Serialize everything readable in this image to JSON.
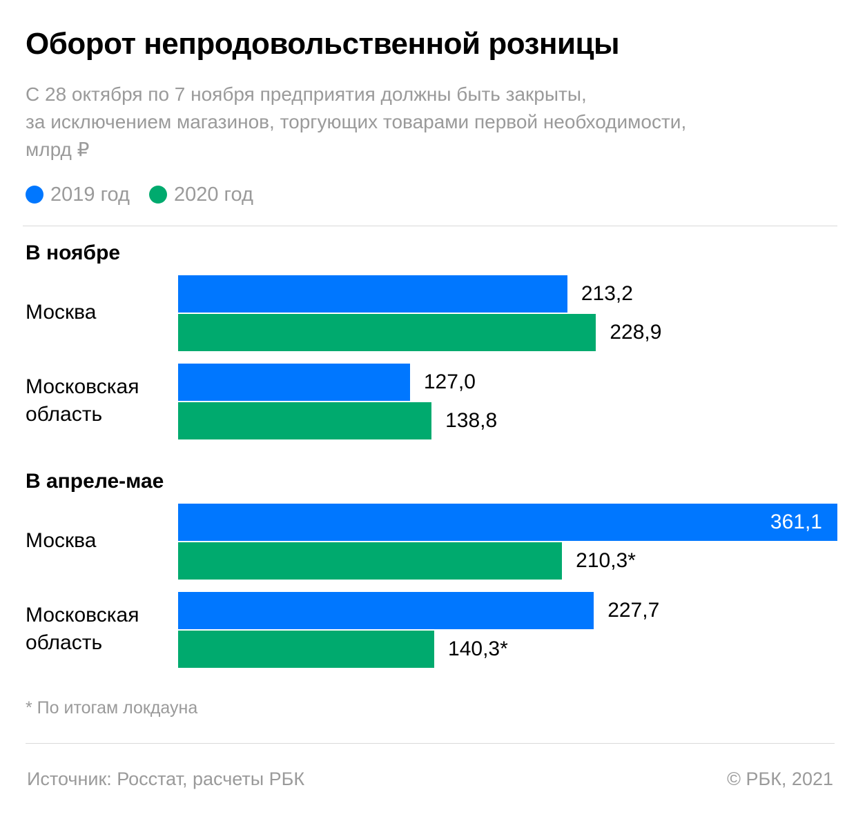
{
  "header": {
    "title": "Оборот непродовольственной розницы",
    "subtitle_lines": [
      "С 28 октября по 7 ноября предприятия должны быть закрыты,",
      "за исключением магазинов, торгующих товарами первой необходимости,",
      "млрд ₽"
    ]
  },
  "chart_data": {
    "type": "bar",
    "orientation": "horizontal",
    "title": "Оборот непродовольственной розницы",
    "unit": "млрд ₽",
    "legend": "top-left",
    "grid": false,
    "xlim": [
      0,
      361.1
    ],
    "series": [
      {
        "name": "2019 год",
        "color": "#0077ff"
      },
      {
        "name": "2020 год",
        "color": "#00aa6e"
      }
    ],
    "groups": [
      {
        "title": "В ноябре",
        "rows": [
          {
            "label": "Москва",
            "values": [
              213.2,
              228.9
            ],
            "value_labels": [
              "213,2",
              "228,9"
            ]
          },
          {
            "label": "Московская область",
            "values": [
              127.0,
              138.8
            ],
            "value_labels": [
              "127,0",
              "138,8"
            ]
          }
        ]
      },
      {
        "title": "В апреле-мае",
        "rows": [
          {
            "label": "Москва",
            "values": [
              361.1,
              210.3
            ],
            "value_labels": [
              "361,1",
              "210,3*"
            ]
          },
          {
            "label": "Московская область",
            "values": [
              227.7,
              140.3
            ],
            "value_labels": [
              "227,7",
              "140,3*"
            ]
          }
        ]
      }
    ]
  },
  "footnote": "* По итогам локдауна",
  "footer": {
    "source": "Источник: Росстат, расчеты РБК",
    "copyright": "©  РБК, 2021"
  }
}
